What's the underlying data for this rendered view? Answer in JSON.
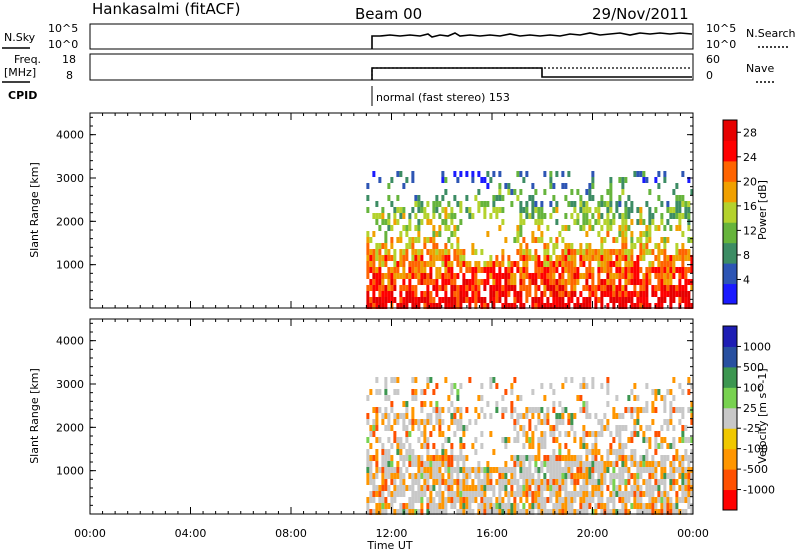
{
  "header": {
    "station": "Hankasalmi (fitACF)",
    "beam": "Beam 00",
    "date": "29/Nov/2011"
  },
  "noise_panel": {
    "left_label": "N.Sky",
    "right_label": "N.Search",
    "ticks_top": "10^5",
    "ticks_bottom": "10^0"
  },
  "freq_panel": {
    "left_label_line1": "Freq.",
    "left_label_line2": "[MHz]",
    "right_label": "Nave",
    "left_ticks": [
      "18",
      "8"
    ],
    "right_ticks": [
      "60",
      "0"
    ]
  },
  "cpid": {
    "label": "CPID",
    "mode_text": "normal (fast stereo) 153"
  },
  "colors": {
    "power_scale": [
      "#1a1aff",
      "#2d55b4",
      "#3c8c64",
      "#66b43c",
      "#b4d22d",
      "#f0a000",
      "#ff6400",
      "#ff0000",
      "#e60000"
    ],
    "velocity_scale": [
      "#ff0000",
      "#ff5000",
      "#ff9600",
      "#f0c800",
      "#c8c8c8",
      "#78d250",
      "#3c9650",
      "#2850a0",
      "#1e1eb4"
    ]
  },
  "chart_data": [
    {
      "type": "heatmap",
      "name": "power",
      "xlabel": "",
      "ylabel": "Slant Range [km]",
      "x_ticks": [
        "00:00",
        "04:00",
        "08:00",
        "12:00",
        "16:00",
        "20:00",
        "00:00"
      ],
      "ylim": [
        0,
        4500
      ],
      "y_ticks": [
        1000,
        2000,
        3000,
        4000
      ],
      "colorbar": {
        "label": "Power [dB]",
        "ticks": [
          4,
          8,
          12,
          16,
          20,
          24,
          28
        ],
        "range": [
          0,
          30
        ]
      }
    },
    {
      "type": "heatmap",
      "name": "velocity",
      "xlabel": "Time UT",
      "ylabel": "Slant Range [km]",
      "x_ticks": [
        "00:00",
        "04:00",
        "08:00",
        "12:00",
        "16:00",
        "20:00",
        "00:00"
      ],
      "ylim": [
        0,
        4500
      ],
      "y_ticks": [
        1000,
        2000,
        3000,
        4000
      ],
      "colorbar": {
        "label": "Velocity [m s^-1]",
        "ticks": [
          "1000",
          "500",
          "100",
          "25",
          "-25",
          "-100",
          "-500",
          "-1000"
        ]
      }
    }
  ]
}
